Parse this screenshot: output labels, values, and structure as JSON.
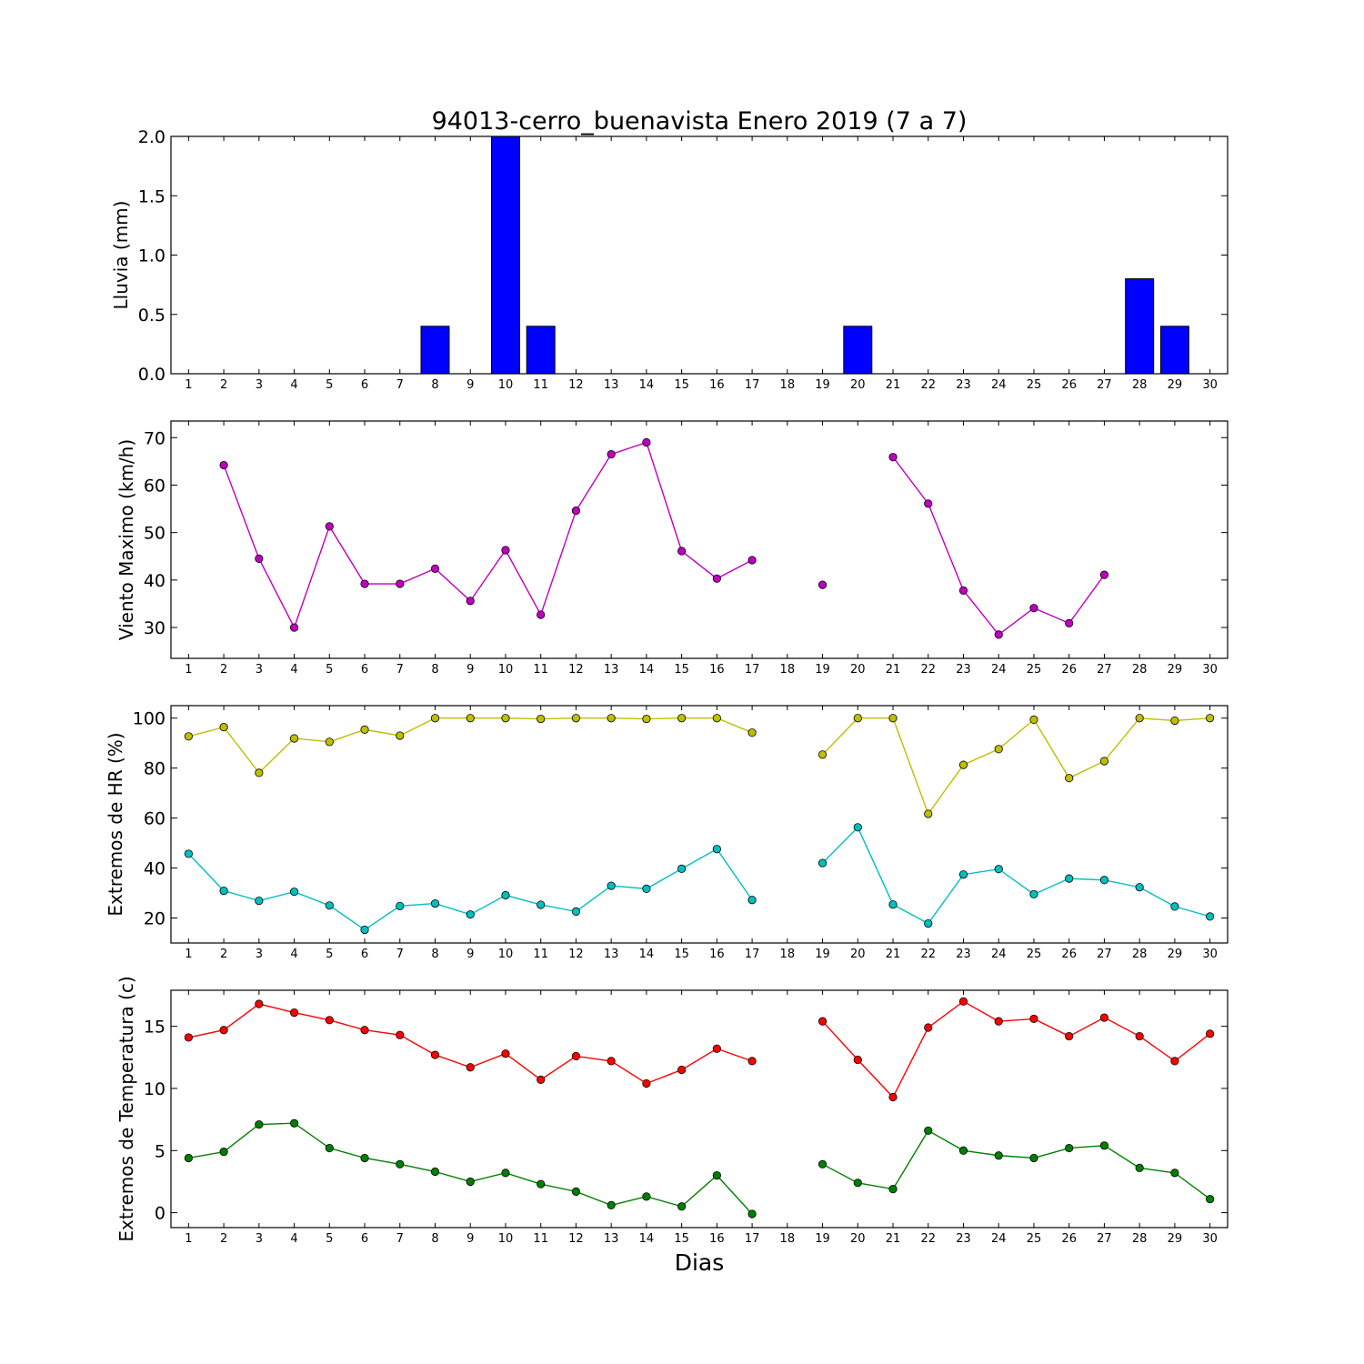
{
  "title": "94013-cerro_buenavista Enero 2019  (7 a 7)",
  "xlabel": "Dias",
  "chart_data": [
    {
      "id": "rain",
      "type": "bar",
      "ylabel": "Lluvia (mm)",
      "ylim": [
        0,
        2.0
      ],
      "yticks": [
        0.0,
        0.5,
        1.0,
        1.5,
        2.0
      ],
      "ytick_labels": [
        "0.0",
        "0.5",
        "1.0",
        "1.5",
        "2.0"
      ],
      "x": [
        1,
        2,
        3,
        4,
        5,
        6,
        7,
        8,
        9,
        10,
        11,
        12,
        13,
        14,
        15,
        16,
        17,
        18,
        19,
        20,
        21,
        22,
        23,
        24,
        25,
        26,
        27,
        28,
        29,
        30
      ],
      "series": [
        {
          "color": "#0000ff",
          "values": [
            0,
            0,
            0,
            0,
            0,
            0,
            0,
            0.4,
            0,
            2.0,
            0.4,
            0,
            0,
            0,
            0,
            0,
            0,
            0,
            0,
            0.4,
            0,
            0,
            0,
            0,
            0,
            0,
            0,
            0.8,
            0.4,
            0
          ]
        }
      ]
    },
    {
      "id": "wind",
      "type": "line",
      "ylabel": "Viento Maximo (km/h)",
      "ylim": [
        23.5,
        73.5
      ],
      "yticks": [
        30,
        40,
        50,
        60,
        70
      ],
      "ytick_labels": [
        "30",
        "40",
        "50",
        "60",
        "70"
      ],
      "x": [
        1,
        2,
        3,
        4,
        5,
        6,
        7,
        8,
        9,
        10,
        11,
        12,
        13,
        14,
        15,
        16,
        17,
        18,
        19,
        20,
        21,
        22,
        23,
        24,
        25,
        26,
        27,
        28,
        29,
        30
      ],
      "series": [
        {
          "color": "#bf00bf",
          "values": [
            null,
            64.2,
            44.5,
            30.0,
            51.3,
            39.2,
            39.2,
            42.4,
            35.6,
            46.3,
            32.7,
            54.6,
            66.5,
            69.0,
            46.1,
            40.3,
            44.2,
            null,
            39.0,
            null,
            65.9,
            56.1,
            37.8,
            28.5,
            34.1,
            30.9,
            41.1,
            null,
            null,
            null
          ]
        }
      ]
    },
    {
      "id": "humidity",
      "type": "line",
      "ylabel": "Extremos de HR (%)",
      "ylim": [
        10,
        105
      ],
      "yticks": [
        20,
        40,
        60,
        80,
        100
      ],
      "ytick_labels": [
        "20",
        "40",
        "60",
        "80",
        "100"
      ],
      "x": [
        1,
        2,
        3,
        4,
        5,
        6,
        7,
        8,
        9,
        10,
        11,
        12,
        13,
        14,
        15,
        16,
        17,
        18,
        19,
        20,
        21,
        22,
        23,
        24,
        25,
        26,
        27,
        28,
        29,
        30
      ],
      "series": [
        {
          "color": "#bfbf00",
          "values": [
            92.7,
            96.4,
            78.1,
            91.9,
            90.5,
            95.4,
            93.0,
            100.0,
            100.0,
            100.0,
            99.7,
            100.0,
            100.0,
            99.7,
            100.0,
            100.0,
            94.2,
            null,
            85.4,
            100.0,
            100.0,
            61.7,
            81.3,
            87.6,
            99.4,
            76.0,
            82.8,
            100.0,
            99.0,
            100.0
          ]
        },
        {
          "color": "#00bfbf",
          "values": [
            45.7,
            30.9,
            26.9,
            30.5,
            25.0,
            15.3,
            24.8,
            25.8,
            21.4,
            29.1,
            25.3,
            22.6,
            32.9,
            31.7,
            39.7,
            47.6,
            27.2,
            null,
            42.0,
            56.3,
            25.4,
            17.8,
            37.4,
            39.6,
            29.5,
            35.8,
            35.2,
            32.3,
            24.6,
            20.6
          ]
        }
      ]
    },
    {
      "id": "temperature",
      "type": "line",
      "ylabel": "Extremos de Temperatura (c)",
      "ylim": [
        -1.2,
        17.9
      ],
      "yticks": [
        0,
        5,
        10,
        15
      ],
      "ytick_labels": [
        "0",
        "5",
        "10",
        "15"
      ],
      "x": [
        1,
        2,
        3,
        4,
        5,
        6,
        7,
        8,
        9,
        10,
        11,
        12,
        13,
        14,
        15,
        16,
        17,
        18,
        19,
        20,
        21,
        22,
        23,
        24,
        25,
        26,
        27,
        28,
        29,
        30
      ],
      "series": [
        {
          "color": "#ff0000",
          "values": [
            14.1,
            14.7,
            16.8,
            16.1,
            15.5,
            14.7,
            14.3,
            12.7,
            11.7,
            12.8,
            10.7,
            12.6,
            12.2,
            10.4,
            11.5,
            13.2,
            12.2,
            null,
            15.4,
            12.3,
            9.3,
            14.9,
            17.0,
            15.4,
            15.6,
            14.2,
            15.7,
            14.2,
            12.2,
            14.4
          ]
        },
        {
          "color": "#007f00",
          "values": [
            4.4,
            4.9,
            7.1,
            7.2,
            5.2,
            4.4,
            3.9,
            3.3,
            2.5,
            3.2,
            2.3,
            1.7,
            0.6,
            1.3,
            0.5,
            3.0,
            -0.1,
            null,
            3.9,
            2.4,
            1.9,
            6.6,
            5.0,
            4.6,
            4.4,
            5.2,
            5.4,
            3.6,
            3.2,
            1.1
          ]
        }
      ]
    }
  ]
}
